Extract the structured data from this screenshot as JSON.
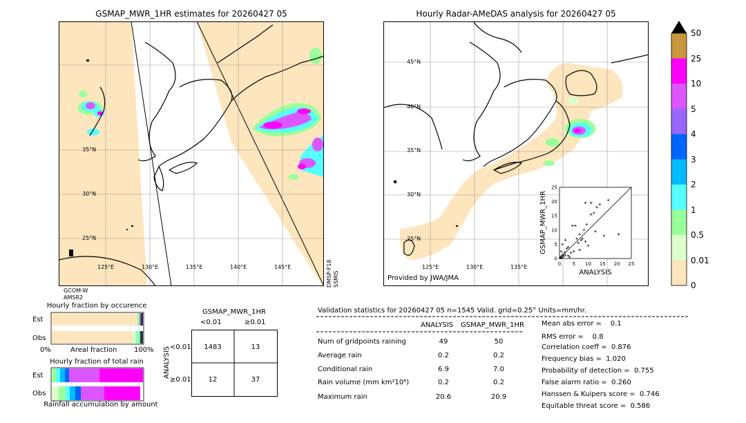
{
  "left_map": {
    "title": "GSMAP_MWR_1HR estimates for 20260427 05",
    "lat_labels": [
      "35°N",
      "30°N",
      "25°N"
    ],
    "lon_labels": [
      "125°E",
      "130°E",
      "135°E",
      "140°E",
      "145°E"
    ],
    "sat_left": "GCOM-W\nAMSR2",
    "sat_right": "DMSP-F18\nSSMIS"
  },
  "right_map": {
    "title": "Hourly Radar-AMeDAS analysis for 20260427 05",
    "lat_labels": [
      "45°N",
      "40°N",
      "35°N",
      "30°N",
      "25°N"
    ],
    "lon_labels": [
      "125°E",
      "130°E",
      "135°E"
    ],
    "credit": "Provided by JWA/JMA"
  },
  "colorbar": {
    "labels": [
      "50",
      "25",
      "10",
      "5",
      "4",
      "3",
      "2",
      "1",
      "0.5",
      "0.01",
      "0"
    ],
    "colors": [
      "#c8963c",
      "#ff00ff",
      "#dd55ff",
      "#9966ff",
      "#0066ff",
      "#00bbff",
      "#55ffff",
      "#99ff99",
      "#ddffcc",
      "#fde5bd"
    ]
  },
  "frac_occ": {
    "title": "Hourly fraction by occurence",
    "rows": [
      "Est",
      "Obs"
    ],
    "xmin": "0%",
    "xmid": "Areal fraction",
    "xmax": "100%"
  },
  "frac_total": {
    "title": "Hourly fraction of total rain",
    "rows": [
      "Est",
      "Obs"
    ],
    "xlabel": "Rainfall accumulation by amount"
  },
  "contingency": {
    "header": "GSMAP_MWR_1HR",
    "col_lt": "<0.01",
    "col_ge": "≥0.01",
    "row_label": "ANALYSIS",
    "row_lt": "<0.01",
    "row_ge": "≥0.01",
    "c11": "1483",
    "c12": "13",
    "c21": "12",
    "c22": "37"
  },
  "validation": {
    "title": "Validation statistics for 20260427 05  n=1545 Valid. grid=0.25° Units=mm/hr.",
    "col_a": "ANALYSIS",
    "col_b": "GSMAP_MWR_1HR",
    "rows": [
      {
        "label": "Num of gridpoints raining",
        "a": "49",
        "b": "50"
      },
      {
        "label": "Average rain",
        "a": "0.2",
        "b": "0.2"
      },
      {
        "label": "Conditional rain",
        "a": "6.9",
        "b": "7.0"
      },
      {
        "label": "Rain volume (mm km²10⁶)",
        "a": "0.2",
        "b": "0.2"
      },
      {
        "label": "Maximum rain",
        "a": "20.6",
        "b": "20.9"
      }
    ],
    "scores": [
      "Mean abs error =    0.1",
      "RMS error =    0.8",
      "Correlation coeff =  0.876",
      "Frequency bias =  1.020",
      "Probability of detection =  0.755",
      "False alarm ratio =  0.260",
      "Hanssen & Kuipers score =  0.746",
      "Equitable threat score =  0.586"
    ]
  },
  "chart_data": {
    "type": "scatter",
    "xlabel": "ANALYSIS",
    "ylabel": "GSMAP_MWR_1HR",
    "xlim": [
      0,
      25
    ],
    "ylim": [
      0,
      25
    ],
    "ticks": [
      "0",
      "5",
      "10",
      "15",
      "20",
      "25"
    ],
    "points": [
      [
        0.3,
        0.5
      ],
      [
        0.5,
        0.2
      ],
      [
        0.8,
        1.0
      ],
      [
        1.0,
        0.4
      ],
      [
        1.2,
        1.5
      ],
      [
        0.6,
        2.5
      ],
      [
        1.5,
        0.8
      ],
      [
        2.0,
        1.2
      ],
      [
        2.5,
        3.5
      ],
      [
        3.0,
        1.0
      ],
      [
        3.5,
        0.5
      ],
      [
        4.0,
        2.0
      ],
      [
        1.0,
        5.0
      ],
      [
        2.0,
        6.5
      ],
      [
        5.0,
        2.5
      ],
      [
        6.0,
        7.0
      ],
      [
        6.5,
        5.5
      ],
      [
        7.0,
        8.5
      ],
      [
        7.5,
        6.5
      ],
      [
        8.0,
        7.0
      ],
      [
        9.0,
        6.0
      ],
      [
        10.0,
        4.5
      ],
      [
        8.5,
        10.0
      ],
      [
        9.5,
        12.0
      ],
      [
        11.0,
        15.5
      ],
      [
        12.0,
        16.0
      ],
      [
        13.0,
        18.0
      ],
      [
        9.0,
        19.5
      ],
      [
        11.0,
        19.5
      ],
      [
        14.0,
        19.0
      ],
      [
        15.5,
        8.0
      ],
      [
        17.0,
        20.5
      ],
      [
        20.6,
        8.5
      ],
      [
        4.5,
        11.5
      ],
      [
        5.5,
        11.5
      ],
      [
        3.0,
        4.0
      ],
      [
        0.2,
        0.1
      ],
      [
        1.8,
        2.2
      ],
      [
        7.0,
        3.0
      ],
      [
        12.5,
        9.5
      ]
    ]
  }
}
